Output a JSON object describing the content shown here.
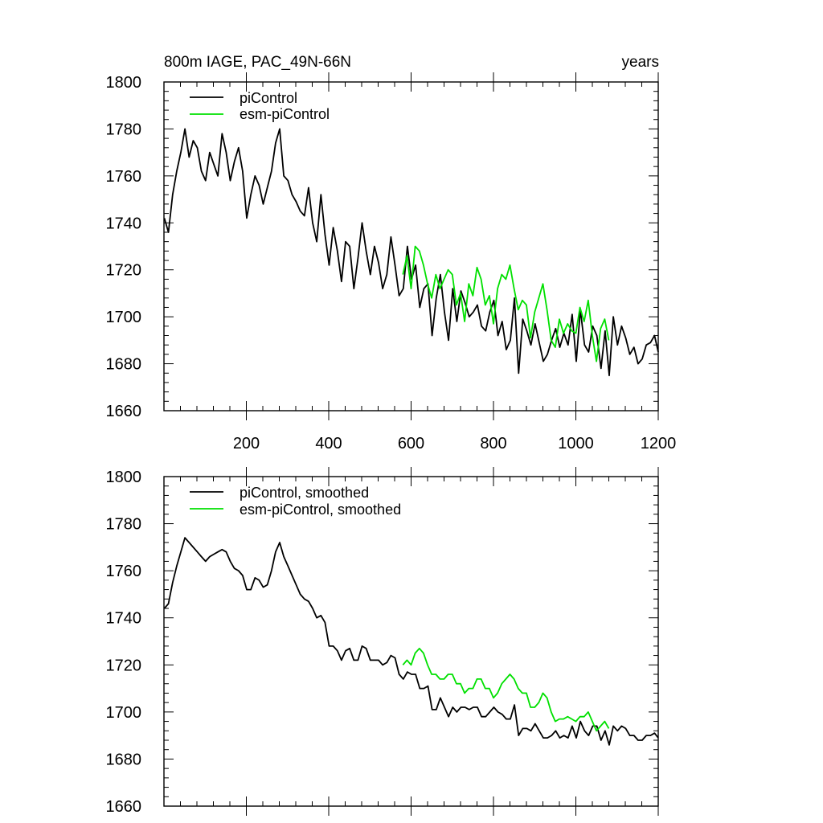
{
  "title_left": "800m IAGE, PAC_49N-66N",
  "title_right": "years",
  "colors": {
    "piControl": "#000000",
    "esm": "#00e000",
    "frame": "#000000"
  },
  "chart_data": [
    {
      "type": "line",
      "panel": "top",
      "xlim": [
        0,
        1200
      ],
      "ylim": [
        1660,
        1800
      ],
      "x_ticks": [
        200,
        400,
        600,
        800,
        1000,
        1200
      ],
      "x_tick_labels": [
        "200",
        "400",
        "600",
        "800",
        "1000",
        "1200"
      ],
      "y_ticks": [
        1660,
        1680,
        1700,
        1720,
        1740,
        1760,
        1780,
        1800
      ],
      "y_tick_labels": [
        "1660",
        "1680",
        "1700",
        "1720",
        "1740",
        "1760",
        "1780",
        "1800"
      ],
      "legend": [
        "piControl",
        "esm-piControl"
      ],
      "series": [
        {
          "name": "piControl",
          "x_start": 1,
          "x_step": 10,
          "values": [
            1742,
            1736,
            1752,
            1762,
            1770,
            1780,
            1768,
            1775,
            1772,
            1762,
            1758,
            1770,
            1765,
            1760,
            1778,
            1770,
            1758,
            1766,
            1772,
            1762,
            1742,
            1752,
            1760,
            1756,
            1748,
            1755,
            1762,
            1774,
            1780,
            1760,
            1758,
            1752,
            1749,
            1745,
            1743,
            1755,
            1740,
            1732,
            1752,
            1735,
            1722,
            1738,
            1728,
            1715,
            1732,
            1730,
            1712,
            1725,
            1740,
            1728,
            1718,
            1730,
            1723,
            1712,
            1718,
            1734,
            1722,
            1709,
            1712,
            1730,
            1716,
            1722,
            1704,
            1712,
            1714,
            1692,
            1708,
            1718,
            1702,
            1690,
            1712,
            1698,
            1711,
            1706,
            1700,
            1702,
            1705,
            1696,
            1694,
            1702,
            1707,
            1692,
            1698,
            1686,
            1690,
            1708,
            1676,
            1699,
            1694,
            1688,
            1697,
            1689,
            1681,
            1684,
            1690,
            1695,
            1687,
            1693,
            1688,
            1701,
            1681,
            1703,
            1688,
            1685,
            1696,
            1692,
            1678,
            1694,
            1675,
            1700,
            1688,
            1696,
            1691,
            1684,
            1687,
            1680,
            1682,
            1688,
            1689,
            1692,
            1685
          ]
        },
        {
          "name": "esm-piControl",
          "x_start": 580,
          "x_step": 10,
          "values": [
            1718,
            1726,
            1712,
            1730,
            1728,
            1722,
            1714,
            1708,
            1718,
            1712,
            1716,
            1720,
            1718,
            1705,
            1710,
            1698,
            1714,
            1709,
            1721,
            1716,
            1705,
            1709,
            1697,
            1712,
            1718,
            1716,
            1722,
            1712,
            1703,
            1707,
            1705,
            1691,
            1702,
            1708,
            1714,
            1703,
            1690,
            1687,
            1699,
            1693,
            1697,
            1694,
            1693,
            1704,
            1698,
            1707,
            1692,
            1681,
            1695,
            1699,
            1690
          ]
        }
      ]
    },
    {
      "type": "line",
      "panel": "bottom",
      "xlim": [
        0,
        1200
      ],
      "ylim": [
        1660,
        1800
      ],
      "x_ticks": [
        200,
        400,
        600,
        800,
        1000,
        1200
      ],
      "y_ticks": [
        1660,
        1680,
        1700,
        1720,
        1740,
        1760,
        1780,
        1800
      ],
      "y_tick_labels": [
        "1660",
        "1680",
        "1700",
        "1720",
        "1740",
        "1760",
        "1780",
        "1800"
      ],
      "legend": [
        "piControl, smoothed",
        "esm-piControl, smoothed"
      ],
      "series": [
        {
          "name": "piControl, smoothed",
          "x_start": 1,
          "x_step": 10,
          "values": [
            1744,
            1746,
            1755,
            1762,
            1768,
            1774,
            1772,
            1770,
            1768,
            1766,
            1764,
            1766,
            1767,
            1768,
            1769,
            1768,
            1764,
            1761,
            1760,
            1758,
            1752,
            1752,
            1757,
            1756,
            1753,
            1754,
            1760,
            1768,
            1772,
            1766,
            1762,
            1758,
            1754,
            1750,
            1748,
            1747,
            1744,
            1740,
            1741,
            1738,
            1728,
            1728,
            1726,
            1722,
            1726,
            1727,
            1722,
            1722,
            1728,
            1727,
            1722,
            1722,
            1722,
            1720,
            1721,
            1724,
            1723,
            1716,
            1714,
            1717,
            1716,
            1716,
            1710,
            1710,
            1711,
            1701,
            1701,
            1706,
            1702,
            1698,
            1702,
            1700,
            1702,
            1702,
            1701,
            1702,
            1702,
            1698,
            1698,
            1700,
            1702,
            1700,
            1699,
            1697,
            1697,
            1703,
            1690,
            1693,
            1693,
            1692,
            1695,
            1692,
            1689,
            1689,
            1690,
            1692,
            1689,
            1690,
            1689,
            1694,
            1689,
            1696,
            1692,
            1690,
            1694,
            1694,
            1688,
            1692,
            1686,
            1694,
            1692,
            1694,
            1693,
            1690,
            1690,
            1688,
            1688,
            1690,
            1690,
            1691,
            1689
          ]
        },
        {
          "name": "esm-piControl, smoothed",
          "x_start": 580,
          "x_step": 10,
          "values": [
            1720,
            1722,
            1720,
            1725,
            1727,
            1725,
            1720,
            1716,
            1716,
            1714,
            1714,
            1716,
            1716,
            1712,
            1712,
            1708,
            1710,
            1710,
            1714,
            1714,
            1710,
            1710,
            1706,
            1708,
            1712,
            1714,
            1716,
            1714,
            1710,
            1708,
            1708,
            1702,
            1702,
            1704,
            1708,
            1706,
            1700,
            1696,
            1697,
            1697,
            1698,
            1697,
            1696,
            1698,
            1698,
            1700,
            1696,
            1692,
            1694,
            1696,
            1693
          ]
        }
      ]
    }
  ]
}
